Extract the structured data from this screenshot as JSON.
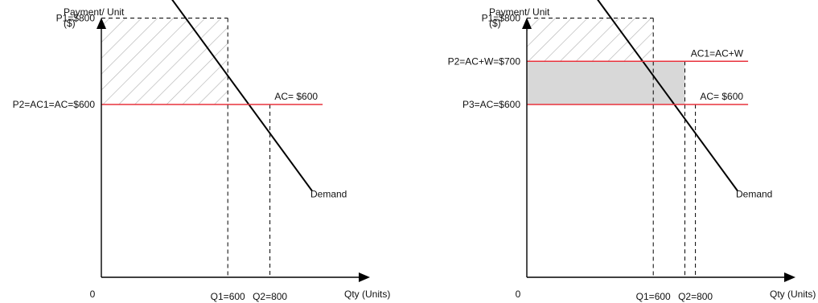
{
  "colors": {
    "axis": "#000000",
    "demand": "#000000",
    "cost_line": "#e8323c",
    "shaded_fill": "#d8d8d8",
    "hatch": "#b4b4b4",
    "guide": "#000000"
  },
  "chart_data": [
    {
      "type": "line",
      "ylabel_line1": "Payment/ Unit",
      "ylabel_line2": "($)",
      "xlabel": "Qty (Units)",
      "origin_label": "0",
      "grid": false,
      "xlim": [
        0,
        1050
      ],
      "ylim": [
        200,
        1050
      ],
      "series": [
        {
          "name": "Demand",
          "x": [
            100,
            1000
          ],
          "y": [
            1000,
            400
          ]
        },
        {
          "name": "AC= $600",
          "x": [
            0,
            1050
          ],
          "y": [
            600,
            600
          ]
        }
      ],
      "price_labels": [
        {
          "text": "P1=$800",
          "y": 800
        },
        {
          "text": "P2=AC1=AC=$600",
          "y": 600
        }
      ],
      "qty_labels": [
        {
          "text": "Q1=600",
          "x": 600
        },
        {
          "text": "Q2=800",
          "x": 800
        }
      ],
      "guides": [
        {
          "x1": 0,
          "y1": 800,
          "x2": 600,
          "y2": 800
        },
        {
          "x1": 600,
          "y1": 800,
          "x2": 600,
          "y2": 200
        },
        {
          "x1": 800,
          "y1": 600,
          "x2": 800,
          "y2": 200
        }
      ],
      "hatched_region": {
        "x": [
          0,
          600
        ],
        "y": [
          600,
          800
        ]
      }
    },
    {
      "type": "line",
      "ylabel_line1": "Payment/ Unit",
      "ylabel_line2": "($)",
      "xlabel": "Qty (Units)",
      "origin_label": "0",
      "grid": false,
      "xlim": [
        0,
        1050
      ],
      "ylim": [
        200,
        1050
      ],
      "series": [
        {
          "name": "Demand",
          "x": [
            100,
            1000
          ],
          "y": [
            1000,
            400
          ]
        },
        {
          "name": "AC1=AC+W",
          "x": [
            0,
            1050
          ],
          "y": [
            700,
            700
          ]
        },
        {
          "name": "AC= $600",
          "x": [
            0,
            1050
          ],
          "y": [
            600,
            600
          ]
        }
      ],
      "price_labels": [
        {
          "text": "P1=$800",
          "y": 800
        },
        {
          "text": "P2=AC+W=$700",
          "y": 700
        },
        {
          "text": "P3=AC=$600",
          "y": 600
        }
      ],
      "qty_labels": [
        {
          "text": "Q1=600",
          "x": 600
        },
        {
          "text": "Q2=800",
          "x": 800
        }
      ],
      "guides": [
        {
          "x1": 0,
          "y1": 800,
          "x2": 600,
          "y2": 800
        },
        {
          "x1": 600,
          "y1": 800,
          "x2": 600,
          "y2": 200
        },
        {
          "x1": 750,
          "y1": 700,
          "x2": 750,
          "y2": 200
        },
        {
          "x1": 800,
          "y1": 600,
          "x2": 800,
          "y2": 200
        }
      ],
      "hatched_region": {
        "x": [
          0,
          600
        ],
        "y": [
          700,
          800
        ]
      },
      "shaded_region": {
        "x": [
          0,
          750
        ],
        "y": [
          600,
          700
        ]
      }
    }
  ]
}
